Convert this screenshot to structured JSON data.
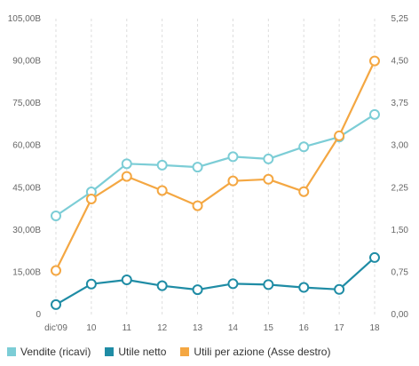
{
  "chart_data": {
    "type": "line",
    "categories": [
      "dic'09",
      "10",
      "11",
      "12",
      "13",
      "14",
      "15",
      "16",
      "17",
      "18"
    ],
    "y_left": {
      "ticks": [
        "0",
        "15,00B",
        "30,00B",
        "45,00B",
        "60,00B",
        "75,00B",
        "90,00B",
        "105,00B"
      ],
      "ylim": [
        0,
        105
      ]
    },
    "y_right": {
      "ticks": [
        "0,00",
        "0,75",
        "1,50",
        "2,25",
        "3,00",
        "3,75",
        "4,50",
        "5,25"
      ],
      "ylim": [
        0,
        5.25
      ]
    },
    "grid": "vertical dashed",
    "legend_position": "bottom",
    "series": [
      {
        "name": "Vendite (ricavi)",
        "axis": "left",
        "color": "#7ccdd6",
        "values": [
          35,
          43.5,
          53.5,
          53,
          52.3,
          56,
          55.2,
          59.5,
          63,
          71
        ]
      },
      {
        "name": "Utile netto",
        "axis": "left",
        "color": "#1f8ca5",
        "values": [
          3.5,
          10.8,
          12.3,
          10.2,
          8.8,
          10.9,
          10.6,
          9.6,
          8.9,
          20.2
        ]
      },
      {
        "name": "Utili per azione (Asse destro)",
        "axis": "right",
        "color": "#f4a742",
        "values": [
          0.78,
          2.05,
          2.45,
          2.2,
          1.93,
          2.37,
          2.4,
          2.18,
          3.17,
          4.5
        ]
      }
    ]
  }
}
